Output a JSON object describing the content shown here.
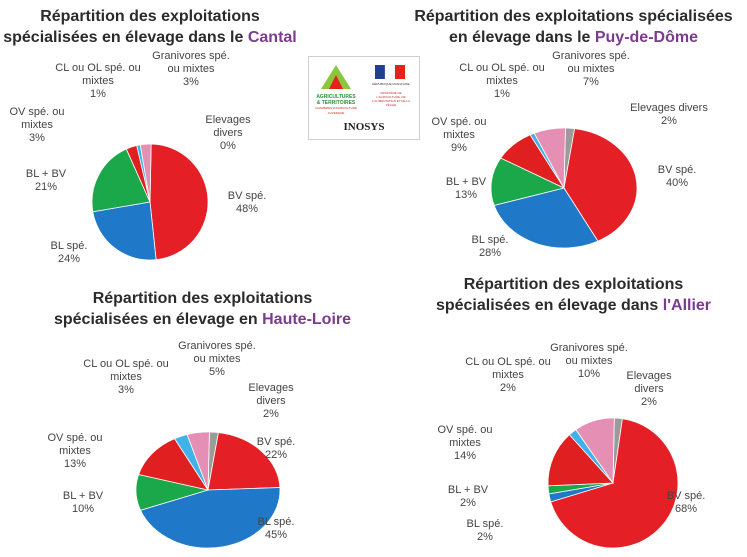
{
  "colors": {
    "bv": "#e41f26",
    "bl": "#1f78c8",
    "blbv": "#1aa84a",
    "ov": "#e02020",
    "clol": "#3fb3e8",
    "granivores": "#e58fb5",
    "divers": "#9b9b9b",
    "region": "#7b3b8f"
  },
  "logos": {
    "agri_logo_lines": [
      "AGRICULTURES",
      "& TERRITOIRES",
      "CHAMBRES D'AGRICULTURE",
      "AUVERGNE"
    ],
    "rf_logo_label": "RÉPUBLIQUE FRANÇAISE",
    "rf_ministry_text": "MINISTÈRE DE L'AGRICULTURE, DE L'ALIMENTATION ET DE LA PÊCHE",
    "inosys": "INOSYS"
  },
  "chart_data": [
    {
      "type": "pie",
      "title_prefix": "Répartition des exploitations spécialisées en élevage dans le",
      "region": "Cantal",
      "title_line1": "Répartition des exploitations",
      "title_line2_prefix": "spécialisées en élevage dans le",
      "slices": [
        {
          "key": "bv",
          "label": "BV spé.",
          "value": 48,
          "pct": "48%"
        },
        {
          "key": "bl",
          "label": "BL spé.",
          "value": 24,
          "pct": "24%"
        },
        {
          "key": "blbv",
          "label": "BL + BV",
          "value": 21,
          "pct": "21%"
        },
        {
          "key": "ov",
          "label": "OV spé. ou mixtes",
          "value": 3,
          "pct": "3%"
        },
        {
          "key": "clol",
          "label": "CL ou OL spé. ou mixtes",
          "value": 1,
          "pct": "1%"
        },
        {
          "key": "granivores",
          "label": "Granivores spé. ou mixtes",
          "value": 3,
          "pct": "3%"
        },
        {
          "key": "divers",
          "label": "Elevages divers",
          "value": 0,
          "pct": "0%"
        }
      ]
    },
    {
      "type": "pie",
      "title_line1": "Répartition des exploitations spécialisées",
      "title_line2_prefix": "en élevage dans le",
      "region": "Puy-de-Dôme",
      "slices": [
        {
          "key": "bv",
          "label": "BV spé.",
          "value": 40,
          "pct": "40%"
        },
        {
          "key": "bl",
          "label": "BL spé.",
          "value": 28,
          "pct": "28%"
        },
        {
          "key": "blbv",
          "label": "BL + BV",
          "value": 13,
          "pct": "13%"
        },
        {
          "key": "ov",
          "label": "OV spé. ou mixtes",
          "value": 9,
          "pct": "9%"
        },
        {
          "key": "clol",
          "label": "CL ou OL spé. ou mixtes",
          "value": 1,
          "pct": "1%"
        },
        {
          "key": "granivores",
          "label": "Granivores spé. ou mixtes",
          "value": 7,
          "pct": "7%"
        },
        {
          "key": "divers",
          "label": "Elevages divers",
          "value": 2,
          "pct": "2%"
        }
      ]
    },
    {
      "type": "pie",
      "title_line1": "Répartition des exploitations",
      "title_line2_prefix": "spécialisées en élevage en",
      "region": "Haute-Loire",
      "slices": [
        {
          "key": "bv",
          "label": "BV spé.",
          "value": 22,
          "pct": "22%"
        },
        {
          "key": "bl",
          "label": "BL spé.",
          "value": 45,
          "pct": "45%"
        },
        {
          "key": "blbv",
          "label": "BL + BV",
          "value": 10,
          "pct": "10%"
        },
        {
          "key": "ov",
          "label": "OV spé. ou mixtes",
          "value": 13,
          "pct": "13%"
        },
        {
          "key": "clol",
          "label": "CL ou OL spé. ou mixtes",
          "value": 3,
          "pct": "3%"
        },
        {
          "key": "granivores",
          "label": "Granivores spé. ou mixtes",
          "value": 5,
          "pct": "5%"
        },
        {
          "key": "divers",
          "label": "Elevages divers",
          "value": 2,
          "pct": "2%"
        }
      ]
    },
    {
      "type": "pie",
      "title_line1": "Répartition des exploitations",
      "title_line2_prefix": "spécialisées en élevage dans",
      "region": "l'Allier",
      "slices": [
        {
          "key": "bv",
          "label": "BV spé.",
          "value": 68,
          "pct": "68%"
        },
        {
          "key": "bl",
          "label": "BL spé.",
          "value": 2,
          "pct": "2%"
        },
        {
          "key": "blbv",
          "label": "BL + BV",
          "value": 2,
          "pct": "2%"
        },
        {
          "key": "ov",
          "label": "OV spé. ou mixtes",
          "value": 14,
          "pct": "14%"
        },
        {
          "key": "clol",
          "label": "CL ou OL spé. ou mixtes",
          "value": 2,
          "pct": "2%"
        },
        {
          "key": "granivores",
          "label": "Granivores spé. ou mixtes",
          "value": 10,
          "pct": "10%"
        },
        {
          "key": "divers",
          "label": "Elevages divers",
          "value": 2,
          "pct": "2%"
        }
      ]
    }
  ]
}
